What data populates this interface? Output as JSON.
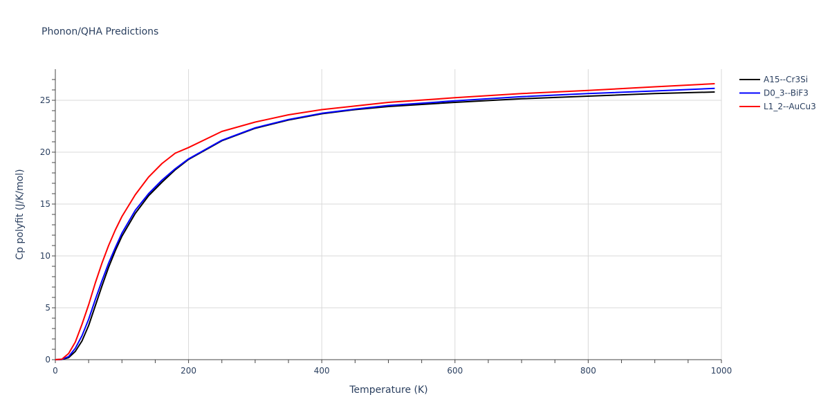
{
  "chart_data": {
    "type": "line",
    "title": "Phonon/QHA Predictions",
    "xlabel": "Temperature (K)",
    "ylabel": "Cp polyfit (J/K/mol)",
    "xlim": [
      0,
      1000
    ],
    "ylim": [
      0,
      28
    ],
    "x_ticks": [
      0,
      200,
      400,
      600,
      800,
      1000
    ],
    "y_ticks": [
      0,
      5,
      10,
      15,
      20,
      25
    ],
    "grid": true,
    "legend_position": "top-right",
    "x": [
      0,
      10,
      20,
      30,
      40,
      50,
      60,
      70,
      80,
      90,
      100,
      120,
      140,
      160,
      180,
      200,
      250,
      300,
      350,
      400,
      450,
      500,
      600,
      700,
      800,
      900,
      990
    ],
    "series": [
      {
        "name": "A15--Cr3Si",
        "color": "#000000",
        "values": [
          0,
          0.02,
          0.2,
          0.8,
          1.8,
          3.3,
          5.2,
          7.1,
          8.9,
          10.5,
          11.9,
          14.1,
          15.8,
          17.1,
          18.3,
          19.3,
          21.1,
          22.3,
          23.1,
          23.7,
          24.1,
          24.4,
          24.8,
          25.15,
          25.4,
          25.65,
          25.8
        ]
      },
      {
        "name": "D0_3--BiF3",
        "color": "#0000ff",
        "values": [
          0,
          0.03,
          0.3,
          1.1,
          2.3,
          3.9,
          5.8,
          7.6,
          9.3,
          10.8,
          12.2,
          14.4,
          16.0,
          17.3,
          18.4,
          19.35,
          21.15,
          22.35,
          23.15,
          23.75,
          24.15,
          24.5,
          24.95,
          25.35,
          25.65,
          25.9,
          26.15
        ]
      },
      {
        "name": "L1_2--AuCu3",
        "color": "#ff0000",
        "values": [
          0,
          0.05,
          0.6,
          1.7,
          3.4,
          5.3,
          7.4,
          9.3,
          11.0,
          12.5,
          13.8,
          15.9,
          17.6,
          18.9,
          19.9,
          20.45,
          22.0,
          22.9,
          23.6,
          24.1,
          24.45,
          24.8,
          25.25,
          25.65,
          25.95,
          26.3,
          26.6
        ]
      }
    ]
  }
}
